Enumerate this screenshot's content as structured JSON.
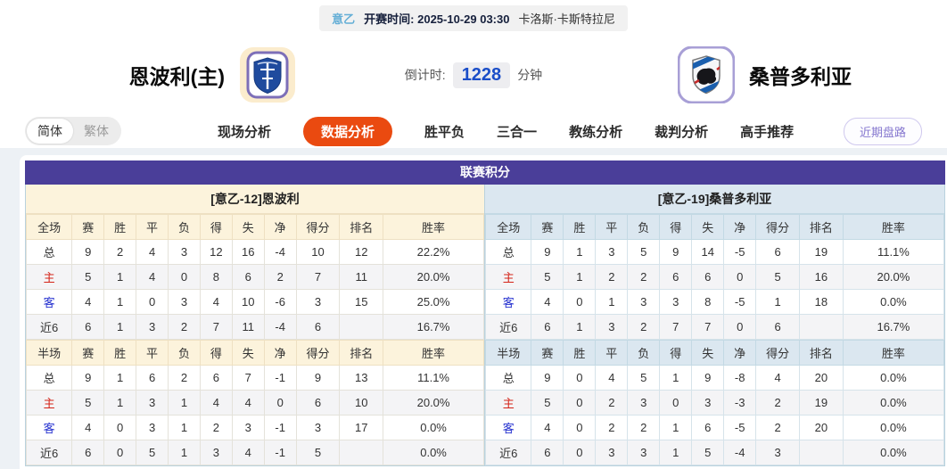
{
  "top_bar": {
    "league": "意乙",
    "kickoff": "开赛时间: 2025-10-29 03:30",
    "venue": "卡洛斯·卡斯特拉尼"
  },
  "header": {
    "home_name": "恩波利(主)",
    "away_name": "桑普多利亚",
    "countdown_label": "倒计时:",
    "countdown_value": "1228",
    "countdown_unit": "分钟"
  },
  "nav": {
    "lang": [
      {
        "label": "简体",
        "active": true
      },
      {
        "label": "繁体",
        "active": false
      }
    ],
    "tabs": [
      {
        "label": "现场分析",
        "active": false
      },
      {
        "label": "数据分析",
        "active": true
      },
      {
        "label": "胜平负",
        "active": false
      },
      {
        "label": "三合一",
        "active": false
      },
      {
        "label": "教练分析",
        "active": false
      },
      {
        "label": "裁判分析",
        "active": false
      },
      {
        "label": "高手推荐",
        "active": false
      }
    ],
    "recent_button": "近期盘路"
  },
  "colors": {
    "accent_purple": "#4a3e99",
    "active_tab_orange": "#ea4a10",
    "home_row_red": "#d42318",
    "away_row_blue": "#2430cf",
    "left_header_cream": "#fcf3dc",
    "right_header_blue": "#dbe7f0"
  },
  "section": {
    "title": "联赛积分",
    "left": {
      "subtitle": "[意乙-12]恩波利",
      "full": {
        "header": [
          "全场",
          "赛",
          "胜",
          "平",
          "负",
          "得",
          "失",
          "净",
          "得分",
          "排名",
          "胜率"
        ],
        "rows": [
          {
            "label": "总",
            "type": "total",
            "cells": [
              "9",
              "2",
              "4",
              "3",
              "12",
              "16",
              "-4",
              "10",
              "12",
              "22.2%"
            ]
          },
          {
            "label": "主",
            "type": "home",
            "cells": [
              "5",
              "1",
              "4",
              "0",
              "8",
              "6",
              "2",
              "7",
              "11",
              "20.0%"
            ]
          },
          {
            "label": "客",
            "type": "away",
            "cells": [
              "4",
              "1",
              "0",
              "3",
              "4",
              "10",
              "-6",
              "3",
              "15",
              "25.0%"
            ]
          },
          {
            "label": "近6",
            "type": "recent",
            "cells": [
              "6",
              "1",
              "3",
              "2",
              "7",
              "11",
              "-4",
              "6",
              "",
              "16.7%"
            ]
          }
        ]
      },
      "half": {
        "header": [
          "半场",
          "赛",
          "胜",
          "平",
          "负",
          "得",
          "失",
          "净",
          "得分",
          "排名",
          "胜率"
        ],
        "rows": [
          {
            "label": "总",
            "type": "total",
            "cells": [
              "9",
              "1",
              "6",
              "2",
              "6",
              "7",
              "-1",
              "9",
              "13",
              "11.1%"
            ]
          },
          {
            "label": "主",
            "type": "home",
            "cells": [
              "5",
              "1",
              "3",
              "1",
              "4",
              "4",
              "0",
              "6",
              "10",
              "20.0%"
            ]
          },
          {
            "label": "客",
            "type": "away",
            "cells": [
              "4",
              "0",
              "3",
              "1",
              "2",
              "3",
              "-1",
              "3",
              "17",
              "0.0%"
            ]
          },
          {
            "label": "近6",
            "type": "recent",
            "cells": [
              "6",
              "0",
              "5",
              "1",
              "3",
              "4",
              "-1",
              "5",
              "",
              "0.0%"
            ]
          }
        ]
      }
    },
    "right": {
      "subtitle": "[意乙-19]桑普多利亚",
      "full": {
        "header": [
          "全场",
          "赛",
          "胜",
          "平",
          "负",
          "得",
          "失",
          "净",
          "得分",
          "排名",
          "胜率"
        ],
        "rows": [
          {
            "label": "总",
            "type": "total",
            "cells": [
              "9",
              "1",
              "3",
              "5",
              "9",
              "14",
              "-5",
              "6",
              "19",
              "11.1%"
            ]
          },
          {
            "label": "主",
            "type": "home",
            "cells": [
              "5",
              "1",
              "2",
              "2",
              "6",
              "6",
              "0",
              "5",
              "16",
              "20.0%"
            ]
          },
          {
            "label": "客",
            "type": "away",
            "cells": [
              "4",
              "0",
              "1",
              "3",
              "3",
              "8",
              "-5",
              "1",
              "18",
              "0.0%"
            ]
          },
          {
            "label": "近6",
            "type": "recent",
            "cells": [
              "6",
              "1",
              "3",
              "2",
              "7",
              "7",
              "0",
              "6",
              "",
              "16.7%"
            ]
          }
        ]
      },
      "half": {
        "header": [
          "半场",
          "赛",
          "胜",
          "平",
          "负",
          "得",
          "失",
          "净",
          "得分",
          "排名",
          "胜率"
        ],
        "rows": [
          {
            "label": "总",
            "type": "total",
            "cells": [
              "9",
              "0",
              "4",
              "5",
              "1",
              "9",
              "-8",
              "4",
              "20",
              "0.0%"
            ]
          },
          {
            "label": "主",
            "type": "home",
            "cells": [
              "5",
              "0",
              "2",
              "3",
              "0",
              "3",
              "-3",
              "2",
              "19",
              "0.0%"
            ]
          },
          {
            "label": "客",
            "type": "away",
            "cells": [
              "4",
              "0",
              "2",
              "2",
              "1",
              "6",
              "-5",
              "2",
              "20",
              "0.0%"
            ]
          },
          {
            "label": "近6",
            "type": "recent",
            "cells": [
              "6",
              "0",
              "3",
              "3",
              "1",
              "5",
              "-4",
              "3",
              "",
              "0.0%"
            ]
          }
        ]
      }
    }
  }
}
